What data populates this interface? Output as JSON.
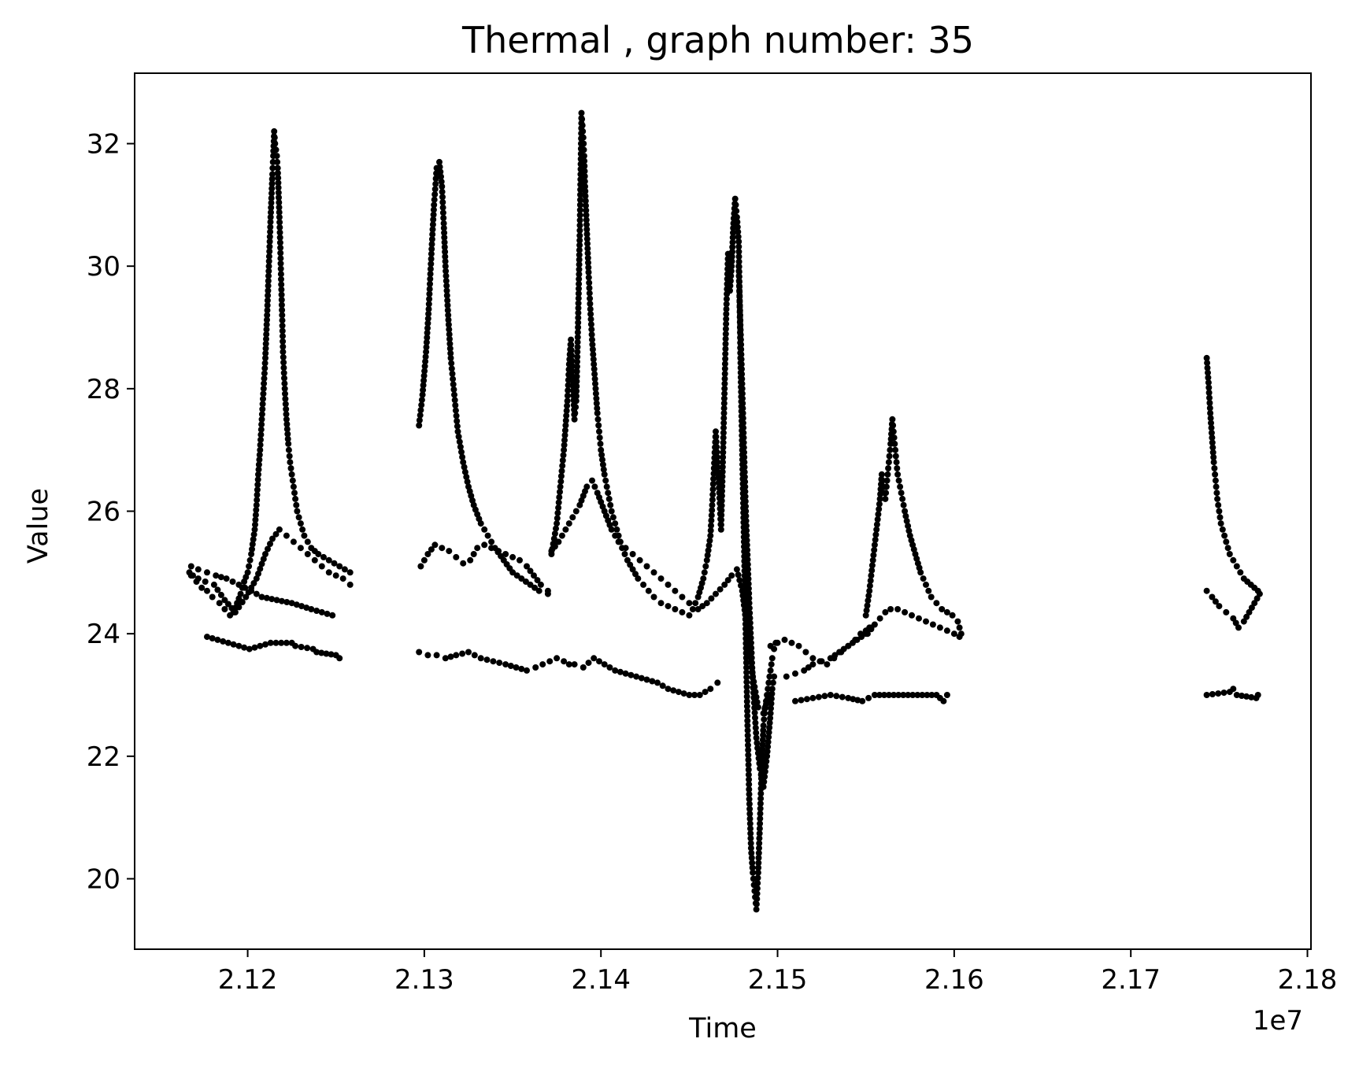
{
  "chart_data": {
    "type": "scatter",
    "title": "Thermal , graph number: 35",
    "xlabel": "Time",
    "ylabel": "Value",
    "x_offset_label": "1e7",
    "xlim": [
      21136000,
      21802000
    ],
    "ylim": [
      18.85,
      33.15
    ],
    "x_ticks": [
      {
        "value": 21200000,
        "label": "2.12"
      },
      {
        "value": 21300000,
        "label": "2.13"
      },
      {
        "value": 21400000,
        "label": "2.14"
      },
      {
        "value": 21500000,
        "label": "2.15"
      },
      {
        "value": 21600000,
        "label": "2.16"
      },
      {
        "value": 21700000,
        "label": "2.17"
      },
      {
        "value": 21800000,
        "label": "2.18"
      }
    ],
    "y_ticks": [
      {
        "value": 20,
        "label": "20"
      },
      {
        "value": 22,
        "label": "22"
      },
      {
        "value": 24,
        "label": "24"
      },
      {
        "value": 26,
        "label": "26"
      },
      {
        "value": 28,
        "label": "28"
      },
      {
        "value": 30,
        "label": "30"
      },
      {
        "value": 32,
        "label": "32"
      }
    ],
    "grid": false,
    "legend": "none",
    "marker_color": "#000000",
    "series": [
      {
        "x": [
          21167000,
          21169000,
          21171000,
          21174000,
          21177000,
          21180000,
          21184000,
          21187000,
          21190000,
          21192000,
          21194000,
          21196000,
          21198000,
          21200000,
          21202000,
          21204000,
          21205000,
          21206000,
          21207000,
          21208000,
          21209000,
          21210000,
          21211000,
          21212000,
          21213000,
          21214000,
          21214500,
          21215000,
          21215500,
          21216000,
          21216500,
          21217000,
          21217500,
          21218000,
          21218500,
          21219000,
          21219500,
          21220000,
          21221000,
          21222000,
          21223000,
          21224000,
          21225000,
          21226000,
          21227000,
          21228000,
          21230000,
          21232000,
          21234000,
          21236000,
          21238000,
          21240000,
          21243000,
          21246000,
          21249000,
          21252000,
          21255000,
          21258000
        ],
        "y": [
          25.0,
          24.95,
          24.85,
          24.75,
          24.7,
          24.6,
          24.5,
          24.4,
          24.3,
          24.35,
          24.5,
          24.65,
          24.85,
          25.0,
          25.3,
          25.7,
          26.1,
          26.6,
          27.0,
          27.5,
          28.0,
          28.5,
          29.2,
          30.0,
          30.8,
          31.5,
          31.8,
          32.2,
          32.0,
          31.9,
          31.8,
          31.6,
          31.2,
          30.8,
          30.3,
          29.7,
          29.2,
          28.6,
          28.0,
          27.5,
          27.1,
          26.8,
          26.6,
          26.4,
          26.2,
          26.0,
          25.8,
          25.6,
          25.5,
          25.4,
          25.35,
          25.3,
          25.25,
          25.2,
          25.15,
          25.1,
          25.05,
          25.0
        ]
      },
      {
        "x": [
          21168000,
          21172000,
          21176000,
          21181000,
          21187000,
          21193000,
          21199000,
          21205000,
          21210000,
          21214000,
          21218000,
          21222000,
          21226000,
          21230000,
          21234000,
          21238000,
          21242000,
          21246000,
          21250000,
          21254000,
          21258000
        ],
        "y": [
          24.95,
          24.9,
          24.85,
          24.8,
          24.55,
          24.35,
          24.6,
          24.9,
          25.3,
          25.55,
          25.7,
          25.6,
          25.5,
          25.4,
          25.3,
          25.2,
          25.1,
          25.0,
          24.95,
          24.9,
          24.8
        ]
      },
      {
        "x": [
          21168000,
          21172000,
          21177000,
          21182000,
          21188000,
          21195000,
          21202000,
          21208000,
          21225000,
          21236000,
          21248000
        ],
        "y": [
          25.1,
          25.05,
          25.0,
          24.95,
          24.9,
          24.8,
          24.7,
          24.6,
          24.5,
          24.4,
          24.3
        ],
        "comment_excluded": false
      },
      {
        "x": [
          21177000,
          21183000,
          21189000,
          21195000,
          21201000,
          21207000,
          21213000,
          21225000,
          21227000,
          21237000,
          21239000,
          21250000,
          21252000
        ],
        "y": [
          23.95,
          23.9,
          23.85,
          23.8,
          23.75,
          23.8,
          23.85,
          23.85,
          23.8,
          23.75,
          23.7,
          23.65,
          23.6
        ]
      },
      {
        "x": [
          21297000,
          21299000,
          21301000,
          21302500,
          21304000,
          21305500,
          21307000,
          21308500,
          21310000,
          21311000,
          21312000,
          21313500,
          21315000,
          21317000,
          21319000,
          21322000,
          21325000,
          21328000,
          21332000,
          21336000,
          21340000,
          21345000,
          21350000,
          21355000,
          21360000,
          21365000,
          21370000
        ],
        "y": [
          27.4,
          27.9,
          28.6,
          29.3,
          30.2,
          31.0,
          31.6,
          31.7,
          31.3,
          30.7,
          30.0,
          29.2,
          28.5,
          27.9,
          27.3,
          26.8,
          26.4,
          26.1,
          25.8,
          25.6,
          25.4,
          25.2,
          25.0,
          24.9,
          24.8,
          24.7,
          24.65
        ]
      },
      {
        "x": [
          21298000,
          21302000,
          21306000,
          21310000,
          21314000,
          21318000,
          21322000,
          21326000,
          21330000,
          21334000,
          21338000,
          21342000,
          21346000,
          21350000,
          21354000,
          21358000,
          21362000,
          21366000,
          21370000
        ],
        "y": [
          25.1,
          25.3,
          25.45,
          25.4,
          25.35,
          25.25,
          25.15,
          25.2,
          25.4,
          25.45,
          25.4,
          25.35,
          25.3,
          25.25,
          25.2,
          25.1,
          24.95,
          24.8,
          24.7
        ]
      },
      {
        "x": [
          21297000,
          21302000,
          21307000,
          21312000,
          21318000,
          21325000,
          21332000,
          21339000,
          21346000,
          21352000,
          21358000,
          21363000,
          21367000,
          21371000,
          21375000,
          21379000,
          21382000
        ],
        "y": [
          23.7,
          23.65,
          23.65,
          23.6,
          23.65,
          23.7,
          23.6,
          23.55,
          23.5,
          23.45,
          23.4,
          23.45,
          23.5,
          23.55,
          23.6,
          23.55,
          23.5
        ]
      },
      {
        "x": [
          21372000,
          21375000,
          21377000,
          21379000,
          21381000,
          21382000,
          21383000,
          21384000,
          21385000,
          21386000,
          21387000,
          21388000,
          21388500,
          21389000,
          21389500,
          21390000,
          21390500,
          21391000,
          21392000,
          21393000,
          21394000,
          21395000,
          21396000,
          21397000,
          21398000,
          21399000,
          21400000,
          21402000,
          21404000,
          21406000,
          21408000,
          21410000,
          21412000,
          21415000,
          21418000,
          21421000,
          21424000,
          21427000,
          21430000,
          21434000,
          21438000,
          21442000,
          21446000,
          21450000
        ],
        "y": [
          25.3,
          25.8,
          26.4,
          27.0,
          27.8,
          28.4,
          28.8,
          28.2,
          27.5,
          27.8,
          29.0,
          30.5,
          31.5,
          32.5,
          32.3,
          32.1,
          31.8,
          31.3,
          30.6,
          29.9,
          29.3,
          28.8,
          28.4,
          28.0,
          27.6,
          27.3,
          27.0,
          26.6,
          26.3,
          26.0,
          25.8,
          25.6,
          25.4,
          25.2,
          25.05,
          24.9,
          24.8,
          24.7,
          24.6,
          24.5,
          24.45,
          24.4,
          24.35,
          24.3
        ]
      },
      {
        "x": [
          21372000,
          21376000,
          21380000,
          21384000,
          21388000,
          21392000,
          21395000,
          21398000,
          21402000,
          21406000,
          21410000,
          21414000,
          21418000,
          21422000,
          21426000,
          21430000,
          21434000,
          21438000,
          21442000,
          21446000,
          21450000
        ],
        "y": [
          25.35,
          25.5,
          25.7,
          25.9,
          26.1,
          26.4,
          26.5,
          26.3,
          26.0,
          25.7,
          25.5,
          25.4,
          25.3,
          25.2,
          25.1,
          25.0,
          24.9,
          24.8,
          24.7,
          24.6,
          24.5
        ]
      },
      {
        "x": [
          21385000,
          21390000,
          21396000,
          21402000,
          21408000,
          21414000,
          21420000,
          21426000,
          21432000,
          21438000,
          21444000,
          21450000,
          21456000,
          21462000,
          21466000
        ],
        "y": [
          23.5,
          23.45,
          23.6,
          23.5,
          23.4,
          23.35,
          23.3,
          23.25,
          23.2,
          23.1,
          23.05,
          23.0,
          23.0,
          23.1,
          23.2
        ]
      },
      {
        "x": [
          21452000,
          21455000,
          21458000,
          21460000,
          21462000,
          21463000,
          21464000,
          21465000,
          21466000,
          21467000,
          21468000,
          21469000,
          21470000,
          21471000,
          21472000,
          21473000,
          21474000,
          21475000,
          21476000,
          21477000,
          21478000,
          21478500,
          21479000,
          21480000,
          21481000,
          21482000,
          21483000,
          21484000,
          21485000,
          21486000,
          21487000,
          21488000,
          21489000,
          21490000,
          21491000,
          21492000,
          21493000,
          21494000,
          21495000,
          21496000,
          21497000,
          21498000,
          21499000
        ],
        "y": [
          24.4,
          24.6,
          24.9,
          25.2,
          25.6,
          26.1,
          26.7,
          27.3,
          26.8,
          26.3,
          25.7,
          26.8,
          28.0,
          29.3,
          30.2,
          29.6,
          30.0,
          30.7,
          31.1,
          30.8,
          30.4,
          29.5,
          28.5,
          27.0,
          25.5,
          24.0,
          22.5,
          21.3,
          20.5,
          20.1,
          19.8,
          19.5,
          20.1,
          20.9,
          21.8,
          22.5,
          22.8,
          23.0,
          23.2,
          23.4,
          23.6,
          23.75,
          23.85
        ]
      },
      {
        "x": [
          21455000,
          21460000,
          21465000,
          21470000,
          21474000,
          21477000,
          21480000,
          21483000,
          21486000,
          21489000,
          21492000,
          21495000
        ],
        "y": [
          24.4,
          24.5,
          24.65,
          24.8,
          24.95,
          25.05,
          24.7,
          24.0,
          23.3,
          22.8,
          22.7,
          23.0
        ]
      },
      {
        "x": [
          21478000,
          21480000,
          21482000,
          21484000,
          21486000,
          21488000,
          21490000,
          21492000,
          21494000,
          21496000,
          21497000,
          21498000
        ],
        "y": [
          30.0,
          28.0,
          26.0,
          24.5,
          23.2,
          22.3,
          21.8,
          21.5,
          22.0,
          22.7,
          23.1,
          23.3
        ]
      },
      {
        "x": [
          21496000,
          21500000,
          21504000,
          21508000,
          21512000,
          21516000,
          21520000,
          21524000,
          21528000,
          21532000,
          21536000,
          21540000,
          21544000,
          21547000,
          21550000,
          21552000
        ],
        "y": [
          23.8,
          23.85,
          23.9,
          23.85,
          23.8,
          23.7,
          23.6,
          23.55,
          23.5,
          23.6,
          23.7,
          23.8,
          23.9,
          24.0,
          24.05,
          24.1
        ]
      },
      {
        "x": [
          21505000,
          21510000,
          21515000,
          21520000,
          21525000,
          21530000,
          21535000,
          21540000,
          21545000,
          21550000,
          21553000
        ],
        "y": [
          23.3,
          23.35,
          23.4,
          23.5,
          23.55,
          23.6,
          23.7,
          23.8,
          23.9,
          24.0,
          24.1
        ]
      },
      {
        "x": [
          21510000,
          21520000,
          21530000,
          21540000,
          21548000,
          21555000,
          21590000,
          21592000,
          21594000,
          21596000
        ],
        "y": [
          22.9,
          22.95,
          23.0,
          22.95,
          22.9,
          23.0,
          23.0,
          22.95,
          22.9,
          23.0
        ]
      },
      {
        "x": [
          21550000,
          21552000,
          21554000,
          21556000,
          21558000,
          21559000,
          21560000,
          21561000,
          21562000,
          21563000,
          21564000,
          21565000,
          21566000,
          21567000,
          21568000,
          21570000,
          21572000,
          21575000,
          21578000,
          21581000,
          21584000,
          21587000,
          21590000,
          21593000,
          21596000,
          21599000,
          21602000,
          21604000
        ],
        "y": [
          24.3,
          24.7,
          25.2,
          25.7,
          26.2,
          26.6,
          26.4,
          26.2,
          26.5,
          26.8,
          27.1,
          27.5,
          27.2,
          26.9,
          26.6,
          26.3,
          26.0,
          25.6,
          25.3,
          25.0,
          24.8,
          24.6,
          24.5,
          24.4,
          24.35,
          24.3,
          24.2,
          24.0
        ]
      },
      {
        "x": [
          21551000,
          21555000,
          21558000,
          21561000,
          21564000,
          21568000,
          21572000,
          21576000,
          21580000,
          21584000,
          21588000,
          21592000,
          21596000,
          21600000,
          21603000
        ],
        "y": [
          24.0,
          24.15,
          24.25,
          24.35,
          24.4,
          24.4,
          24.35,
          24.3,
          24.25,
          24.2,
          24.15,
          24.1,
          24.05,
          24.0,
          23.95
        ]
      },
      {
        "x": [
          21743000,
          21744000,
          21745000,
          21746000,
          21747000,
          21748000,
          21749000,
          21750000,
          21751000,
          21752000,
          21753000,
          21754000,
          21755000,
          21756000,
          21758000,
          21760000,
          21762000,
          21764000,
          21766000,
          21768000,
          21770000,
          21772000
        ],
        "y": [
          28.5,
          28.1,
          27.6,
          27.2,
          26.8,
          26.5,
          26.2,
          26.0,
          25.8,
          25.7,
          25.6,
          25.5,
          25.4,
          25.3,
          25.2,
          25.1,
          25.0,
          24.9,
          24.85,
          24.8,
          24.75,
          24.7
        ]
      },
      {
        "x": [
          21743000,
          21746000,
          21750000,
          21754000,
          21758000,
          21761000,
          21764000,
          21767000,
          21770000,
          21773000
        ],
        "y": [
          24.7,
          24.6,
          24.45,
          24.35,
          24.25,
          24.1,
          24.2,
          24.35,
          24.5,
          24.65
        ]
      },
      {
        "x": [
          21743000,
          21756000,
          21758000,
          21760000,
          21771000,
          21772000
        ],
        "y": [
          23.0,
          23.05,
          23.1,
          23.0,
          22.95,
          23.0
        ]
      }
    ]
  }
}
